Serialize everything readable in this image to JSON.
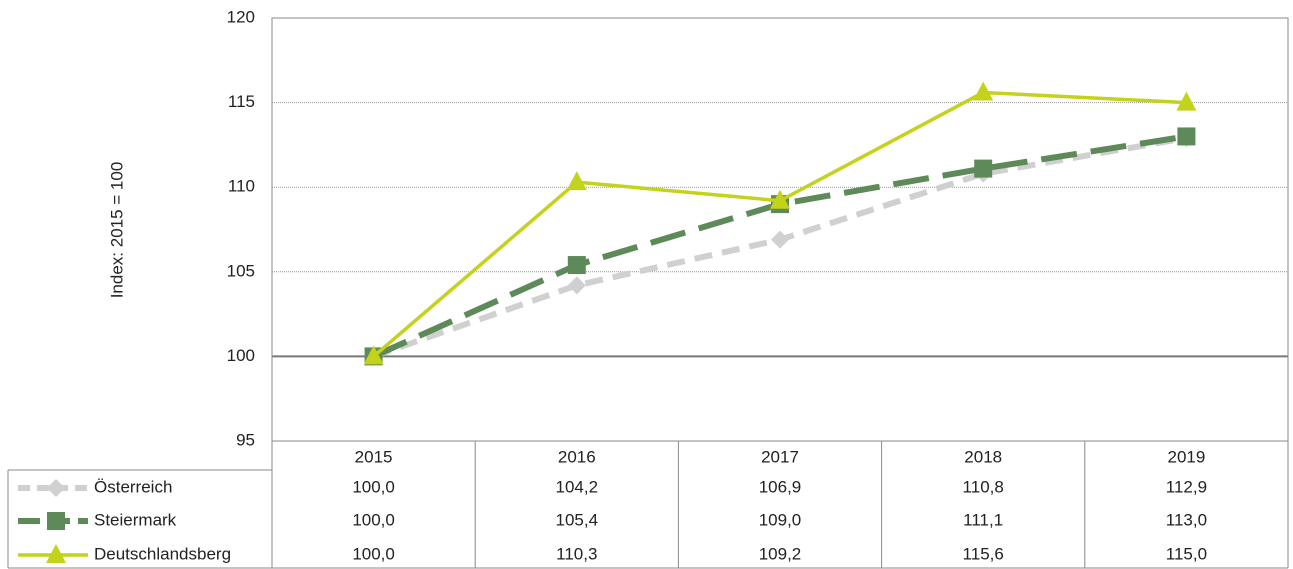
{
  "chart_data": {
    "type": "line",
    "y_label": "Index: 2015 = 100",
    "categories": [
      "2015",
      "2016",
      "2017",
      "2018",
      "2019"
    ],
    "series": [
      {
        "name": "Österreich",
        "color": "#d0d0d0",
        "line_style": "dashed",
        "marker": "diamond",
        "values": [
          100.0,
          104.2,
          106.9,
          110.8,
          112.9
        ],
        "value_labels": [
          "100,0",
          "104,2",
          "106,9",
          "110,8",
          "112,9"
        ]
      },
      {
        "name": "Steiermark",
        "color": "#5e8a5a",
        "line_style": "long-dashed",
        "marker": "square",
        "values": [
          100.0,
          105.4,
          109.0,
          111.1,
          113.0
        ],
        "value_labels": [
          "100,0",
          "105,4",
          "109,0",
          "111,1",
          "113,0"
        ]
      },
      {
        "name": "Deutschlandsberg",
        "color": "#c3d21a",
        "line_style": "solid",
        "marker": "triangle",
        "values": [
          100.0,
          110.3,
          109.2,
          115.6,
          115.0
        ],
        "value_labels": [
          "100,0",
          "110,3",
          "109,2",
          "115,6",
          "115,0"
        ]
      }
    ],
    "ylim": [
      95,
      120
    ],
    "yticks": [
      95,
      100,
      105,
      110,
      115,
      120
    ],
    "grid": true,
    "reference_line": 100,
    "legend": "table"
  }
}
